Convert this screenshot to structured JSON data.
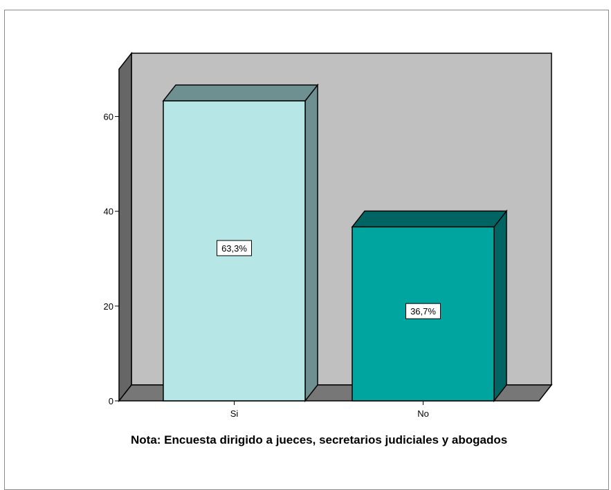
{
  "chart_data": {
    "type": "bar",
    "categories": [
      "Si",
      "No"
    ],
    "values": [
      63.3,
      36.7
    ],
    "data_labels": [
      "63,3%",
      "36,7%"
    ],
    "ylim": [
      0,
      70
    ],
    "yticks": [
      0,
      20,
      40,
      60
    ],
    "ytick_labels": [
      "0",
      "20",
      "40",
      "60"
    ],
    "grid": false,
    "style": "3d",
    "colors": {
      "wall": "#c0c0c0",
      "floor": "#777777",
      "side_wall": "#666666",
      "series": [
        {
          "front": "#b7e6e7",
          "top": "#6f9090",
          "side": "#6f9090"
        },
        {
          "front": "#00a5a0",
          "top": "#006562",
          "side": "#006562"
        }
      ]
    }
  },
  "note": "Nota: Encuesta dirigido a jueces, secretarios judiciales y abogados"
}
